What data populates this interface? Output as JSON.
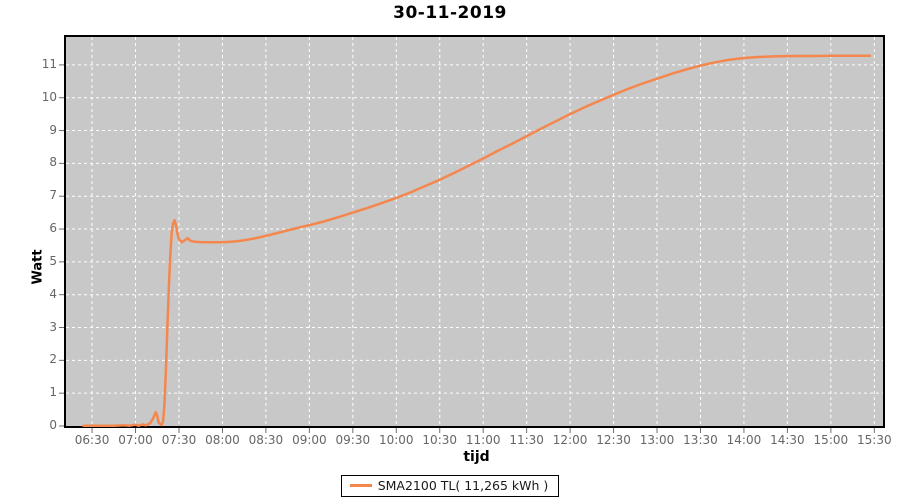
{
  "title": "30-11-2019",
  "y_axis": {
    "label": "Watt"
  },
  "x_axis": {
    "label": "tijd"
  },
  "legend": {
    "label": "SMA2100 TL( 11,265 kWh )"
  },
  "colors": {
    "series": "#F4874E",
    "plot_bg": "#C8C8C8",
    "gridline": "#FFFFFF",
    "plot_border": "#000000",
    "tick_label": "#666666",
    "tick_mark": "#6E6E6E",
    "legend_border": "#000000",
    "page_bg": "#FFFFFF"
  },
  "chart_data": {
    "type": "line",
    "title": "30-11-2019",
    "xlabel": "tijd",
    "ylabel": "Watt",
    "grid": true,
    "legend_position": "bottom",
    "x_ticks": [
      "06:30",
      "07:00",
      "07:30",
      "08:00",
      "08:30",
      "09:00",
      "09:30",
      "10:00",
      "10:30",
      "11:00",
      "11:30",
      "12:00",
      "12:30",
      "13:00",
      "13:30",
      "14:00",
      "14:30",
      "15:00",
      "15:30"
    ],
    "y_ticks": [
      0,
      1,
      2,
      3,
      4,
      5,
      6,
      7,
      8,
      9,
      10,
      11
    ],
    "x_range": [
      "06:12",
      "15:36"
    ],
    "y_range": [
      0,
      11.85
    ],
    "series": [
      {
        "name": "SMA2100 TL( 11,265 kWh )",
        "total_yield_kwh": "11,265",
        "color": "#F4874E",
        "points": [
          [
            "06:24",
            0.01
          ],
          [
            "06:35",
            0.01
          ],
          [
            "06:45",
            0.01
          ],
          [
            "06:52",
            0.02
          ],
          [
            "06:56",
            0.01
          ],
          [
            "07:00",
            0.04
          ],
          [
            "07:02",
            0.01
          ],
          [
            "07:05",
            0.05
          ],
          [
            "07:07",
            0.02
          ],
          [
            "07:10",
            0.08
          ],
          [
            "07:12",
            0.22
          ],
          [
            "07:14",
            0.42
          ],
          [
            "07:15",
            0.3
          ],
          [
            "07:16",
            0.1
          ],
          [
            "07:18",
            0.03
          ],
          [
            "07:19",
            0.15
          ],
          [
            "07:20",
            0.7
          ],
          [
            "07:21",
            1.8
          ],
          [
            "07:22",
            3.0
          ],
          [
            "07:23",
            4.2
          ],
          [
            "07:24",
            5.2
          ],
          [
            "07:25",
            5.9
          ],
          [
            "07:26",
            6.18
          ],
          [
            "07:27",
            6.27
          ],
          [
            "07:28",
            6.1
          ],
          [
            "07:29",
            5.85
          ],
          [
            "07:30",
            5.68
          ],
          [
            "07:32",
            5.6
          ],
          [
            "07:34",
            5.66
          ],
          [
            "07:36",
            5.72
          ],
          [
            "07:38",
            5.64
          ],
          [
            "07:41",
            5.61
          ],
          [
            "07:46",
            5.6
          ],
          [
            "07:52",
            5.6
          ],
          [
            "08:00",
            5.6
          ],
          [
            "08:06",
            5.61
          ],
          [
            "08:12",
            5.64
          ],
          [
            "08:18",
            5.68
          ],
          [
            "08:24",
            5.73
          ],
          [
            "08:30",
            5.79
          ],
          [
            "08:38",
            5.88
          ],
          [
            "08:46",
            5.97
          ],
          [
            "08:54",
            6.06
          ],
          [
            "09:02",
            6.14
          ],
          [
            "09:10",
            6.23
          ],
          [
            "09:20",
            6.36
          ],
          [
            "09:30",
            6.5
          ],
          [
            "09:40",
            6.64
          ],
          [
            "09:50",
            6.79
          ],
          [
            "10:00",
            6.95
          ],
          [
            "10:10",
            7.12
          ],
          [
            "10:20",
            7.31
          ],
          [
            "10:30",
            7.5
          ],
          [
            "10:40",
            7.71
          ],
          [
            "10:50",
            7.93
          ],
          [
            "11:00",
            8.15
          ],
          [
            "11:10",
            8.38
          ],
          [
            "11:20",
            8.6
          ],
          [
            "11:30",
            8.83
          ],
          [
            "11:40",
            9.06
          ],
          [
            "11:50",
            9.28
          ],
          [
            "12:00",
            9.5
          ],
          [
            "12:10",
            9.71
          ],
          [
            "12:20",
            9.9
          ],
          [
            "12:30",
            10.09
          ],
          [
            "12:40",
            10.27
          ],
          [
            "12:50",
            10.43
          ],
          [
            "13:00",
            10.58
          ],
          [
            "13:10",
            10.73
          ],
          [
            "13:20",
            10.86
          ],
          [
            "13:30",
            10.98
          ],
          [
            "13:40",
            11.08
          ],
          [
            "13:50",
            11.16
          ],
          [
            "14:00",
            11.21
          ],
          [
            "14:10",
            11.24
          ],
          [
            "14:20",
            11.26
          ],
          [
            "14:35",
            11.27
          ],
          [
            "14:50",
            11.27
          ],
          [
            "15:00",
            11.28
          ],
          [
            "15:10",
            11.28
          ],
          [
            "15:20",
            11.28
          ],
          [
            "15:27",
            11.28
          ]
        ]
      }
    ]
  }
}
